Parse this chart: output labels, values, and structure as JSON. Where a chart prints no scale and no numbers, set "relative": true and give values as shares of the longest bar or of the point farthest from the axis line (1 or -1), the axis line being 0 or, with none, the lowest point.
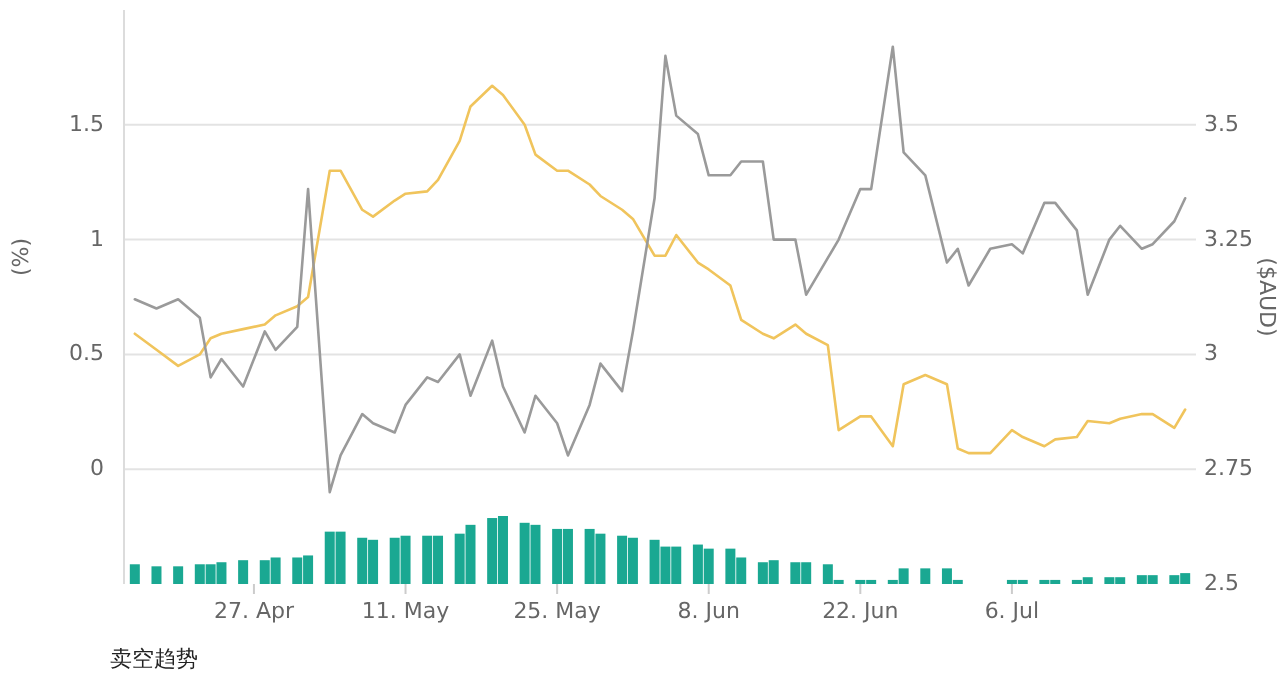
{
  "chart_data": [
    {
      "type": "line",
      "title": "卖空趋势",
      "ylabel": "(%)",
      "y2label": "($AUD)",
      "grid": "y",
      "xlim": [
        "--04-15",
        "--07-23"
      ],
      "xticks": [
        {
          "value": "--04-27",
          "label": "27. Apr"
        },
        {
          "value": "--05-11",
          "label": "11. May"
        },
        {
          "value": "--05-25",
          "label": "25. May"
        },
        {
          "value": "--06-08",
          "label": "8. Jun"
        },
        {
          "value": "--06-22",
          "label": "22. Jun"
        },
        {
          "value": "--07-06",
          "label": "6. Jul"
        }
      ],
      "ylim": [
        -0.5,
        2
      ],
      "yticks": [
        0,
        0.5,
        1,
        1.5
      ],
      "y2lim": [
        2.5,
        3.75
      ],
      "y2ticks": [
        2.5,
        2.75,
        3,
        3.25,
        3.5
      ],
      "x": [
        "--04-16",
        "--04-18",
        "--04-20",
        "--04-22",
        "--04-23",
        "--04-24",
        "--04-26",
        "--04-28",
        "--04-29",
        "--05-01",
        "--05-02",
        "--05-04",
        "--05-05",
        "--05-07",
        "--05-08",
        "--05-10",
        "--05-11",
        "--05-13",
        "--05-14",
        "--05-16",
        "--05-17",
        "--05-19",
        "--05-20",
        "--05-22",
        "--05-23",
        "--05-25",
        "--05-26",
        "--05-28",
        "--05-29",
        "--05-31",
        "--06-01",
        "--06-03",
        "--06-04",
        "--06-05",
        "--06-07",
        "--06-08",
        "--06-10",
        "--06-11",
        "--06-13",
        "--06-14",
        "--06-16",
        "--06-17",
        "--06-19",
        "--06-20",
        "--06-22",
        "--06-23",
        "--06-25",
        "--06-26",
        "--06-28",
        "--06-30",
        "--07-01",
        "--07-02",
        "--07-04",
        "--07-06",
        "--07-07",
        "--07-09",
        "--07-10",
        "--07-12",
        "--07-13",
        "--07-15",
        "--07-16",
        "--07-18",
        "--07-19",
        "--07-21",
        "--07-22"
      ],
      "series": [
        {
          "color": "#f0c45c",
          "values": [
            0.59,
            0.52,
            0.45,
            0.5,
            0.57,
            0.59,
            0.61,
            0.63,
            0.67,
            0.71,
            0.75,
            1.3,
            1.3,
            1.13,
            1.1,
            1.17,
            1.2,
            1.21,
            1.26,
            1.43,
            1.58,
            1.67,
            1.63,
            1.5,
            1.37,
            1.3,
            1.3,
            1.24,
            1.19,
            1.13,
            1.09,
            0.93,
            0.93,
            1.02,
            0.9,
            0.87,
            0.8,
            0.65,
            0.59,
            0.57,
            0.63,
            0.59,
            0.54,
            0.17,
            0.23,
            0.23,
            0.1,
            0.37,
            0.41,
            0.37,
            0.09,
            0.07,
            0.07,
            0.17,
            0.14,
            0.1,
            0.13,
            0.14,
            0.21,
            0.2,
            0.22,
            0.24,
            0.24,
            0.18,
            0.26
          ]
        },
        {
          "color": "#9a9a9a",
          "axis": "y2",
          "values": [
            3.12,
            3.1,
            3.12,
            3.08,
            2.95,
            2.99,
            2.93,
            3.05,
            3.01,
            3.06,
            3.36,
            2.7,
            2.78,
            2.87,
            2.85,
            2.83,
            2.89,
            2.95,
            2.94,
            3.0,
            2.91,
            3.03,
            2.93,
            2.83,
            2.91,
            2.85,
            2.78,
            2.89,
            2.98,
            2.92,
            3.05,
            3.34,
            3.65,
            3.52,
            3.48,
            3.39,
            3.39,
            3.42,
            3.42,
            3.25,
            3.25,
            3.13,
            3.21,
            3.25,
            3.36,
            3.36,
            3.67,
            3.44,
            3.39,
            3.2,
            3.23,
            3.15,
            3.23,
            3.24,
            3.22,
            3.33,
            3.33,
            3.27,
            3.13,
            3.25,
            3.28,
            3.23,
            3.24,
            3.29,
            3.34
          ]
        }
      ]
    },
    {
      "type": "bar",
      "relative": true,
      "color": "#1aa892",
      "xlim": [
        "--04-15",
        "--07-23"
      ],
      "x": [
        "--04-16",
        "--04-18",
        "--04-20",
        "--04-22",
        "--04-23",
        "--04-24",
        "--04-26",
        "--04-28",
        "--04-29",
        "--05-01",
        "--05-02",
        "--05-04",
        "--05-05",
        "--05-07",
        "--05-08",
        "--05-10",
        "--05-11",
        "--05-13",
        "--05-14",
        "--05-16",
        "--05-17",
        "--05-19",
        "--05-20",
        "--05-22",
        "--05-23",
        "--05-25",
        "--05-26",
        "--05-28",
        "--05-29",
        "--05-31",
        "--06-01",
        "--06-03",
        "--06-04",
        "--06-05",
        "--06-07",
        "--06-08",
        "--06-10",
        "--06-11",
        "--06-13",
        "--06-14",
        "--06-16",
        "--06-17",
        "--06-19",
        "--06-20",
        "--06-22",
        "--06-23",
        "--06-25",
        "--06-26",
        "--06-28",
        "--06-30",
        "--07-01",
        "--07-02",
        "--07-04",
        "--07-06",
        "--07-07",
        "--07-09",
        "--07-10",
        "--07-12",
        "--07-13",
        "--07-15",
        "--07-16",
        "--07-18",
        "--07-19",
        "--07-21",
        "--07-22"
      ],
      "values": [
        0.29,
        0.26,
        0.26,
        0.29,
        0.29,
        0.32,
        0.35,
        0.35,
        0.39,
        0.39,
        0.42,
        0.77,
        0.77,
        0.68,
        0.65,
        0.68,
        0.71,
        0.71,
        0.71,
        0.74,
        0.87,
        0.97,
        1,
        0.9,
        0.87,
        0.81,
        0.81,
        0.81,
        0.74,
        0.71,
        0.68,
        0.65,
        0.55,
        0.55,
        0.58,
        0.52,
        0.52,
        0.39,
        0.32,
        0.35,
        0.32,
        0.32,
        0.29,
        0.06,
        0.06,
        0.06,
        0.06,
        0.23,
        0.23,
        0.23,
        0.06,
        null,
        null,
        0.06,
        0.06,
        0.06,
        0.06,
        0.06,
        0.1,
        0.1,
        0.1,
        0.13,
        0.13,
        0.13,
        0.16
      ]
    }
  ]
}
